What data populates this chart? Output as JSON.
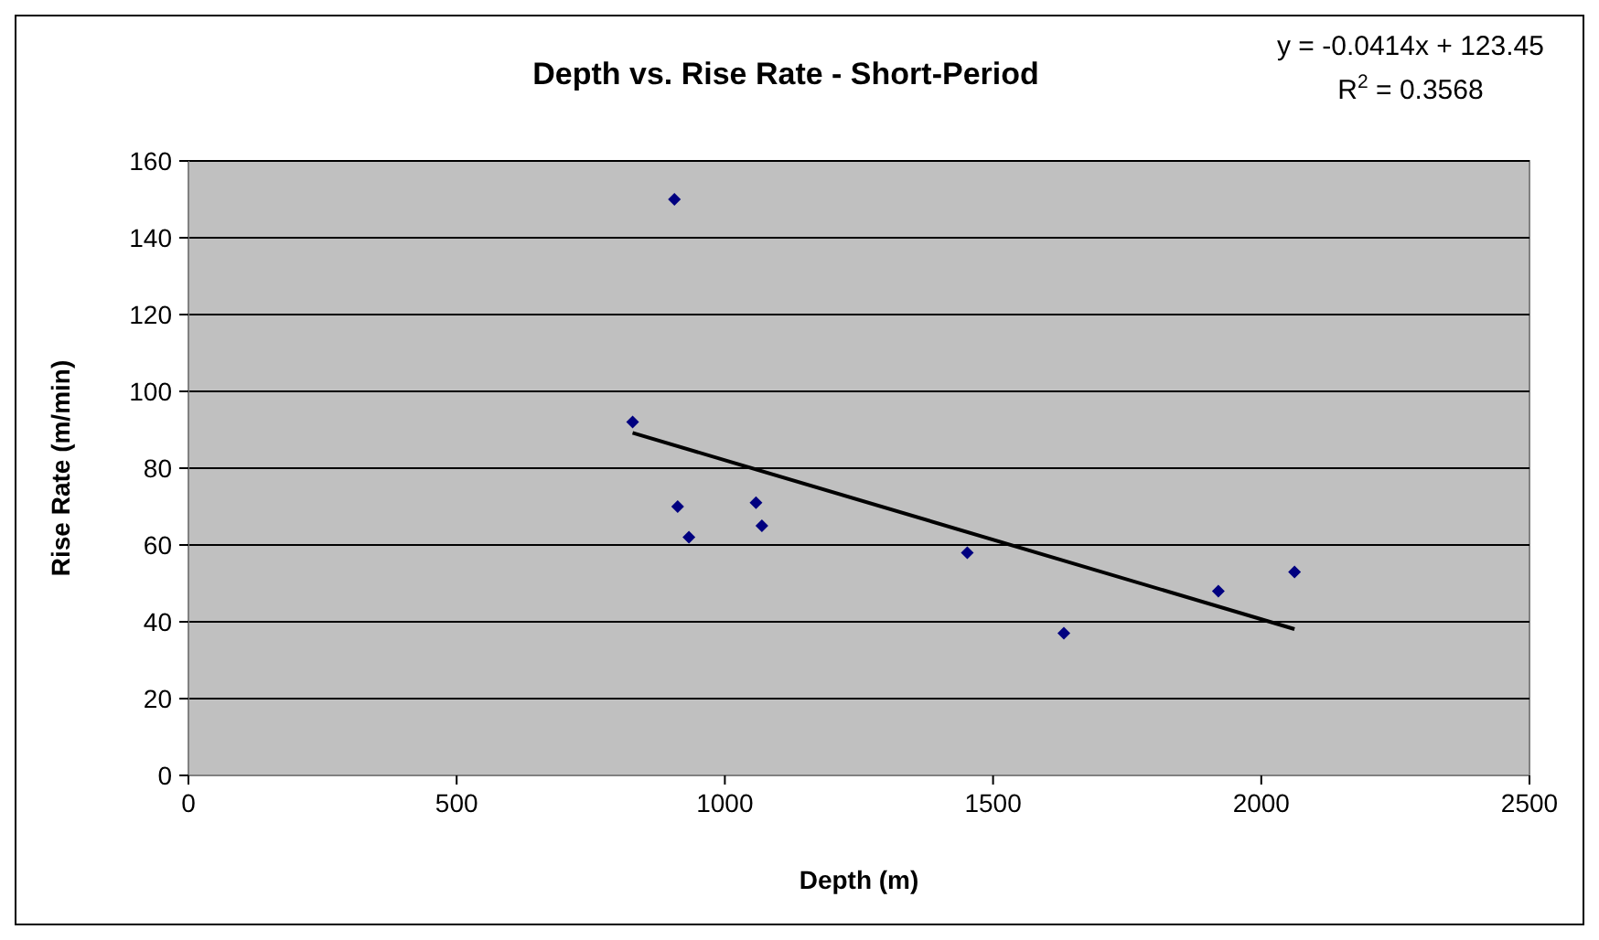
{
  "chart_data": {
    "type": "scatter",
    "title": "Depth vs. Rise Rate - Short-Period",
    "xlabel": "Depth (m)",
    "ylabel": "Rise Rate (m/min)",
    "xlim": [
      0,
      2500
    ],
    "xticks": [
      0,
      500,
      1000,
      1500,
      2000,
      2500
    ],
    "ylim": [
      0,
      160
    ],
    "yticks": [
      0,
      20,
      40,
      60,
      80,
      100,
      120,
      140,
      160
    ],
    "grid": "y",
    "annotations": [
      "y = -0.0414x + 123.45",
      "R$^{2}$ = 0.3568"
    ],
    "series": [
      {
        "color": "#000080",
        "marker": "diamond",
        "x": [
          828,
          906,
          912,
          933,
          1058,
          1069,
          1452,
          1632,
          1920,
          2062
        ],
        "values": [
          92,
          150,
          70,
          62,
          71,
          65,
          58,
          37,
          48,
          53
        ]
      },
      {
        "type": "line",
        "color": "#000000",
        "marker": "none",
        "x": [
          828,
          2062
        ],
        "values": [
          89.2,
          38.1
        ]
      }
    ]
  }
}
